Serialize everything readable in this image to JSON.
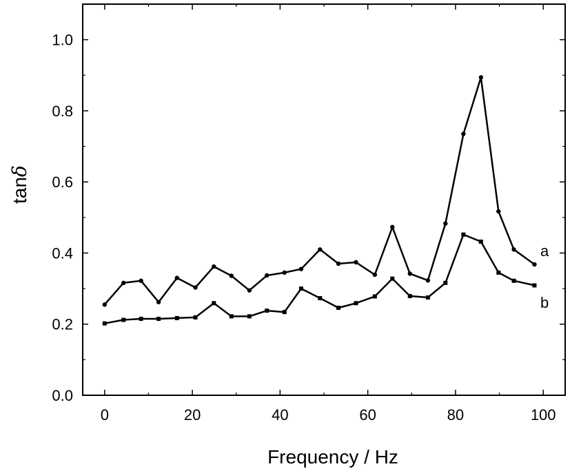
{
  "chart_data": {
    "type": "line",
    "xlabel": "Frequency / Hz",
    "ylabel": "tan",
    "ylabel_symbol": "δ",
    "xlim": [
      -5,
      105
    ],
    "ylim": [
      0.0,
      1.1
    ],
    "x_ticks": [
      "0",
      "20",
      "40",
      "60",
      "80",
      "100"
    ],
    "y_ticks": [
      "0.0",
      "0.2",
      "0.4",
      "0.6",
      "0.8",
      "1.0"
    ],
    "grid": false,
    "series": [
      {
        "name": "a",
        "marker": "circle",
        "x": [
          0,
          4.3,
          8.3,
          12.3,
          16.5,
          20.7,
          24.9,
          28.9,
          33.0,
          37.0,
          41.0,
          44.8,
          49.1,
          53.3,
          57.3,
          61.6,
          65.6,
          69.6,
          73.7,
          77.7,
          81.8,
          85.8,
          89.8,
          93.3,
          98.0
        ],
        "y": [
          0.255,
          0.316,
          0.322,
          0.262,
          0.33,
          0.303,
          0.362,
          0.336,
          0.295,
          0.337,
          0.345,
          0.355,
          0.41,
          0.37,
          0.374,
          0.339,
          0.473,
          0.342,
          0.323,
          0.483,
          0.735,
          0.894,
          0.517,
          0.41,
          0.368
        ]
      },
      {
        "name": "b",
        "marker": "square",
        "x": [
          0,
          4.3,
          8.3,
          12.3,
          16.5,
          20.7,
          24.9,
          28.9,
          33.0,
          37.0,
          41.0,
          44.8,
          49.1,
          53.3,
          57.3,
          61.6,
          65.6,
          69.6,
          73.7,
          77.7,
          81.8,
          85.8,
          89.8,
          93.3,
          98.0
        ],
        "y": [
          0.202,
          0.212,
          0.215,
          0.215,
          0.217,
          0.219,
          0.259,
          0.222,
          0.222,
          0.238,
          0.234,
          0.3,
          0.273,
          0.246,
          0.259,
          0.278,
          0.328,
          0.279,
          0.275,
          0.316,
          0.452,
          0.432,
          0.345,
          0.322,
          0.309
        ]
      }
    ]
  }
}
